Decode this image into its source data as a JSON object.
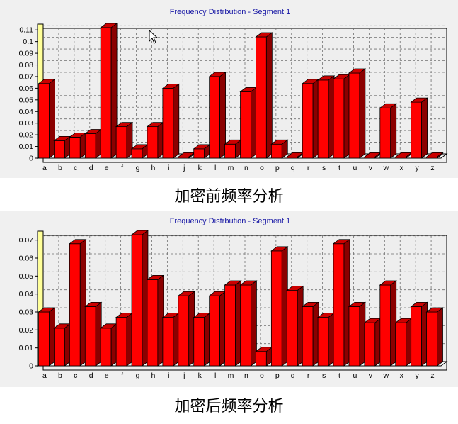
{
  "chart_data": [
    {
      "type": "bar",
      "title": "Frequency Distrbution - Segment 1",
      "caption": "加密前频率分析",
      "categories": [
        "a",
        "b",
        "c",
        "d",
        "e",
        "f",
        "g",
        "h",
        "i",
        "j",
        "k",
        "l",
        "m",
        "n",
        "o",
        "p",
        "q",
        "r",
        "s",
        "t",
        "u",
        "v",
        "w",
        "x",
        "y",
        "z"
      ],
      "values": [
        0.064,
        0.015,
        0.018,
        0.021,
        0.112,
        0.027,
        0.008,
        0.027,
        0.06,
        0.001,
        0.008,
        0.07,
        0.012,
        0.057,
        0.104,
        0.012,
        0.001,
        0.064,
        0.067,
        0.068,
        0.073,
        0.001,
        0.043,
        0.001,
        0.048,
        0.001
      ],
      "yticks": [
        "0",
        "0.01",
        "0.02",
        "0.03",
        "0.04",
        "0.05",
        "0.06",
        "0.07",
        "0.08",
        "0.09",
        "0.1",
        "0.11"
      ],
      "ylim": [
        0,
        0.115
      ],
      "grid": true,
      "bar_color": "#ff0000",
      "title_color": "#1a1aa6"
    },
    {
      "type": "bar",
      "title": "Frequency Distrbution - Segment 1",
      "caption": "加密后频率分析",
      "categories": [
        "a",
        "b",
        "c",
        "d",
        "e",
        "f",
        "g",
        "h",
        "i",
        "j",
        "k",
        "l",
        "m",
        "n",
        "o",
        "p",
        "q",
        "r",
        "s",
        "t",
        "u",
        "v",
        "w",
        "x",
        "y",
        "z"
      ],
      "values": [
        0.03,
        0.021,
        0.068,
        0.033,
        0.021,
        0.027,
        0.073,
        0.048,
        0.027,
        0.039,
        0.027,
        0.039,
        0.045,
        0.045,
        0.008,
        0.064,
        0.042,
        0.033,
        0.027,
        0.068,
        0.033,
        0.024,
        0.045,
        0.024,
        0.033,
        0.03
      ],
      "yticks": [
        "0",
        "0.01",
        "0.02",
        "0.03",
        "0.04",
        "0.05",
        "0.06",
        "0.07"
      ],
      "ylim": [
        0,
        0.075
      ],
      "grid": true,
      "bar_color": "#ff0000",
      "title_color": "#1a1aa6"
    }
  ]
}
